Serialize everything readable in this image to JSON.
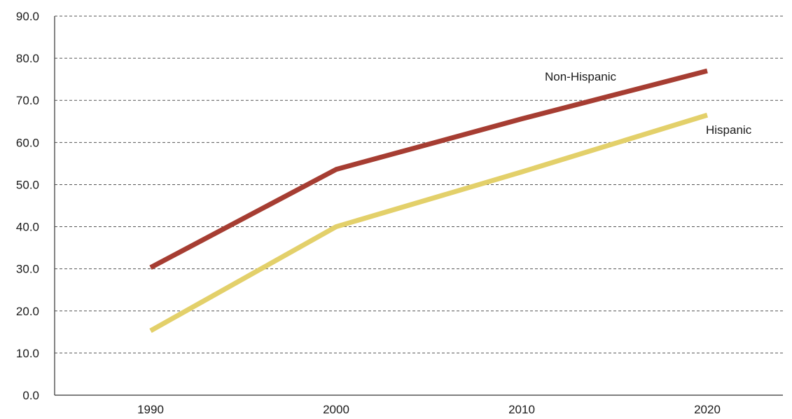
{
  "chart_data": {
    "type": "line",
    "title": "",
    "xlabel": "",
    "ylabel": "",
    "x": [
      1990,
      2000,
      2010,
      2020
    ],
    "x_tick_labels": [
      "1990",
      "2000",
      "2010",
      "2020"
    ],
    "y_tick_labels": [
      "0.0",
      "10.0",
      "20.0",
      "30.0",
      "40.0",
      "50.0",
      "60.0",
      "70.0",
      "80.0",
      "90.0"
    ],
    "ylim": [
      0,
      90
    ],
    "grid": true,
    "legend": "none",
    "series": [
      {
        "name": "Non-Hispanic",
        "color": "#a63d32",
        "values": [
          30.3,
          53.6,
          65.6,
          77.0
        ]
      },
      {
        "name": "Hispanic",
        "color": "#e3d06a",
        "values": [
          15.3,
          40.0,
          53.0,
          66.5
        ]
      }
    ]
  }
}
